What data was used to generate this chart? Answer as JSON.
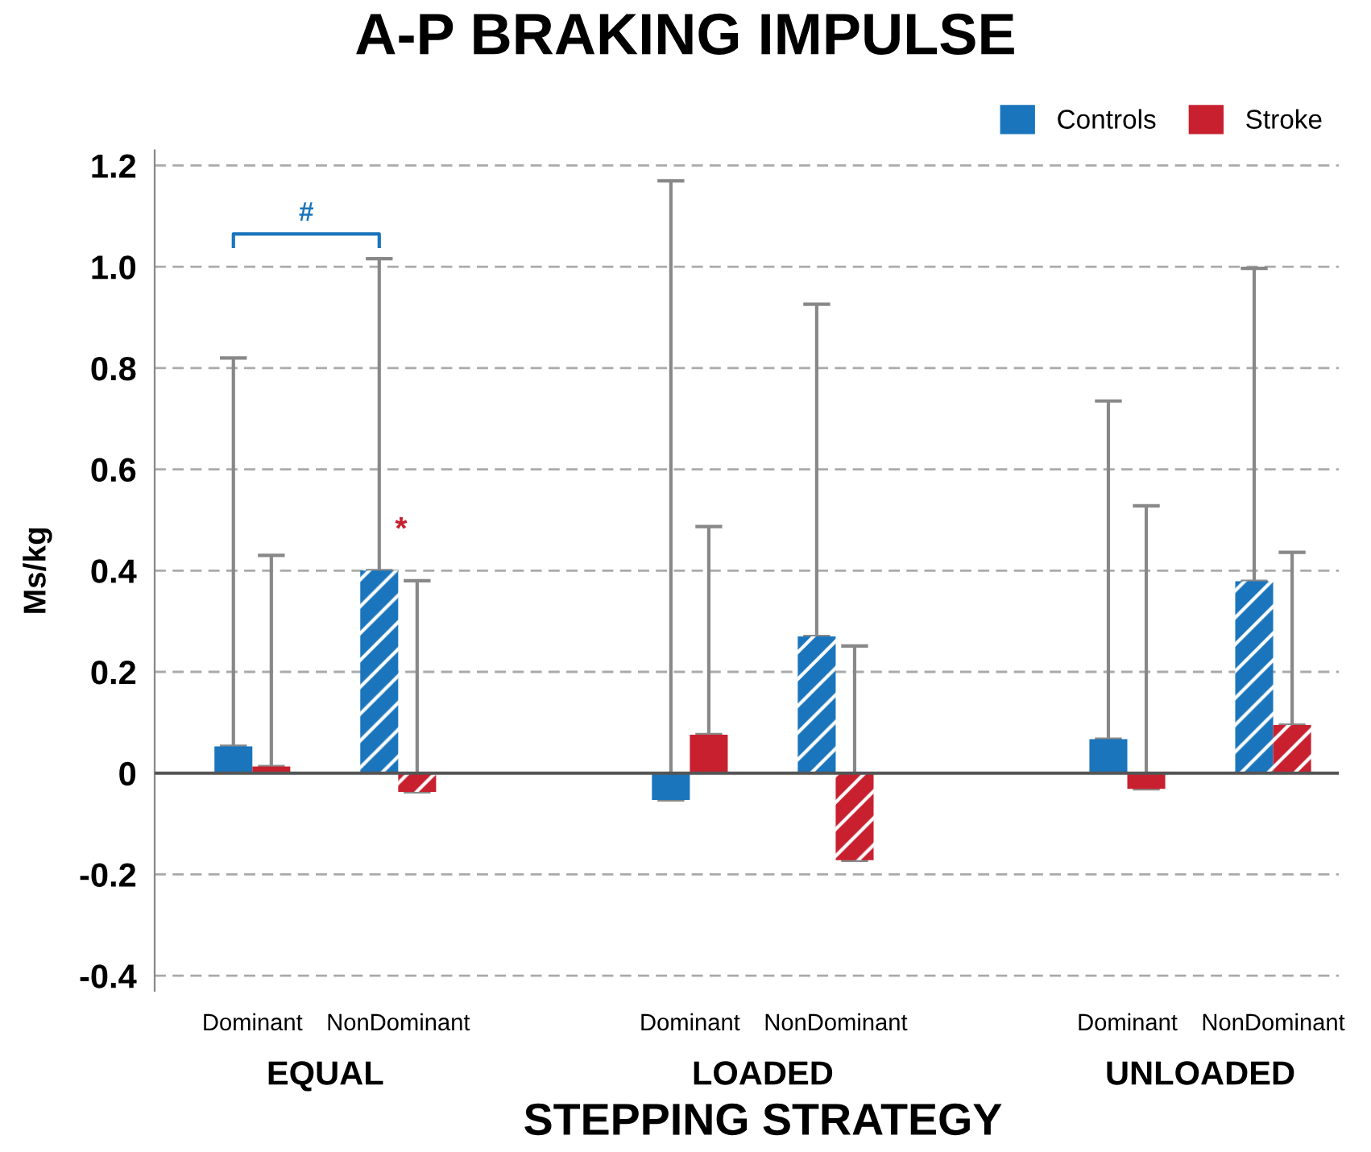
{
  "chart_data": {
    "type": "bar",
    "title": "A-P BRAKING IMPULSE",
    "xlabel": "STEPPING STRATEGY",
    "ylabel": "Ms/kg",
    "categories": [
      "Dominant",
      "NonDominant",
      null,
      "Dominant",
      "NonDominant",
      null,
      "Dominant",
      "NonDominant"
    ],
    "series": [
      {
        "name": "Controls",
        "color": "#1a75bc",
        "values": [
          0.053,
          0.4,
          null,
          -0.053,
          0.27,
          null,
          0.067,
          0.379
        ],
        "errors": [
          [
            0.053,
            0.82
          ],
          [
            0.4,
            1.016
          ],
          null,
          [
            -0.053,
            1.17
          ],
          [
            0.27,
            0.926
          ],
          null,
          [
            0.067,
            0.735
          ],
          [
            0.379,
            0.997
          ]
        ]
      },
      {
        "name": "Stroke",
        "color": "#c8202f",
        "values": [
          0.013,
          -0.037,
          null,
          0.076,
          -0.172,
          null,
          -0.031,
          0.095
        ],
        "errors": [
          [
            0.013,
            0.43
          ],
          [
            -0.037,
            0.38
          ],
          null,
          [
            0.076,
            0.487
          ],
          [
            -0.172,
            0.251
          ],
          null,
          [
            -0.031,
            0.528
          ],
          [
            0.095,
            0.436
          ]
        ]
      }
    ],
    "ylim": [
      -0.43,
      1.23
    ],
    "yticks": [
      {
        "value": -0.4,
        "label": "-0.4"
      },
      {
        "value": -0.2,
        "label": "-0.2"
      },
      0,
      {
        "value": 0.2,
        "label": "0.2"
      },
      {
        "value": 0.4,
        "label": "0.4"
      },
      {
        "value": 0.6,
        "label": "0.6"
      },
      {
        "value": 0.8,
        "label": "0.8"
      },
      {
        "value": 1.0,
        "label": "1.0"
      },
      {
        "value": 1.2,
        "label": "1.2"
      }
    ],
    "ref_lines": [
      {
        "axis": "y",
        "value": 0,
        "color": "#555555",
        "line_style": "solid"
      }
    ],
    "grid": "y",
    "legend": "top right",
    "annotations": [
      "#",
      "*",
      "EQUAL",
      "LOADED",
      "UNLOADED"
    ]
  }
}
